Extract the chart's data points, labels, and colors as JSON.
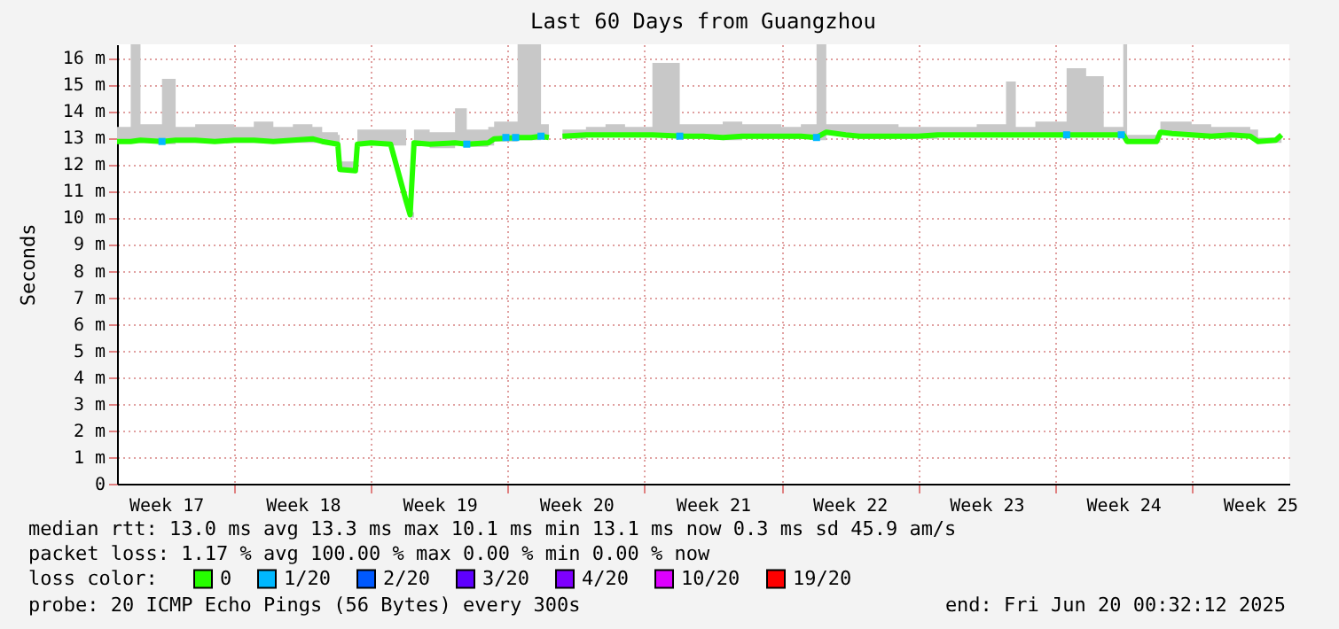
{
  "chart_data": {
    "type": "line",
    "title": "Last 60 Days from Guangzhou",
    "ylabel": "Seconds",
    "legend_title": "loss color:",
    "xlim": [
      "2025-04-21T00:00",
      "2025-06-20T00:00"
    ],
    "ylim": [
      0,
      16.5
    ],
    "xticks": [
      {
        "value": "2025-04-23T12:00",
        "label": "Week 17"
      },
      {
        "value": "2025-04-27T00:00",
        "label": null
      },
      {
        "value": "2025-04-30T12:00",
        "label": "Week 18"
      },
      {
        "value": "2025-05-04T00:00",
        "label": null
      },
      {
        "value": "2025-05-07T12:00",
        "label": "Week 19"
      },
      {
        "value": "2025-05-11T00:00",
        "label": null
      },
      {
        "value": "2025-05-14T12:00",
        "label": "Week 20"
      },
      {
        "value": "2025-05-18T00:00",
        "label": null
      },
      {
        "value": "2025-05-21T12:00",
        "label": "Week 21"
      },
      {
        "value": "2025-05-25T00:00",
        "label": null
      },
      {
        "value": "2025-05-28T12:00",
        "label": "Week 22"
      },
      {
        "value": "2025-06-01T00:00",
        "label": null
      },
      {
        "value": "2025-06-04T12:00",
        "label": "Week 23"
      },
      {
        "value": "2025-06-08T00:00",
        "label": null
      },
      {
        "value": "2025-06-11T12:00",
        "label": "Week 24"
      },
      {
        "value": "2025-06-15T00:00",
        "label": null
      },
      {
        "value": "2025-06-18T12:00",
        "label": "Week 25"
      }
    ],
    "yticks": [
      0,
      {
        "value": 1,
        "label": "1 m"
      },
      {
        "value": 2,
        "label": "2 m"
      },
      {
        "value": 3,
        "label": "3 m"
      },
      {
        "value": 4,
        "label": "4 m"
      },
      {
        "value": 5,
        "label": "5 m"
      },
      {
        "value": 6,
        "label": "6 m"
      },
      {
        "value": 7,
        "label": "7 m"
      },
      {
        "value": 8,
        "label": "8 m"
      },
      {
        "value": 9,
        "label": "9 m"
      },
      {
        "value": 10,
        "label": "10 m"
      },
      {
        "value": 11,
        "label": "11 m"
      },
      {
        "value": 12,
        "label": "12 m"
      },
      {
        "value": 13,
        "label": "13 m"
      },
      {
        "value": 14,
        "label": "14 m"
      },
      {
        "value": 15,
        "label": "15 m"
      },
      {
        "value": 16,
        "label": "16 m"
      }
    ],
    "grid": true,
    "legend": "bottom",
    "marker": "none",
    "line_style": "solid",
    "series": [
      {
        "name": "0",
        "color": "#26ff00",
        "x": [
          "2025-04-21T00:00",
          "2025-04-21T16:48",
          "2025-04-22T04:48",
          "2025-04-23T07:12",
          "2025-04-24T00:00",
          "2025-04-25T00:00",
          "2025-04-26T00:00",
          "2025-04-27T00:00",
          "2025-04-28T00:00",
          "2025-04-29T00:00",
          "2025-04-30T00:00",
          "2025-05-01T00:00",
          "2025-05-01T12:00",
          "2025-05-02T07:12",
          "2025-05-02T09:36",
          "2025-05-03T04:48",
          "2025-05-03T07:12",
          "2025-05-04T00:00",
          "2025-05-05T00:00",
          "2025-05-05T19:12",
          "2025-05-06T00:00",
          "2025-05-06T04:48",
          "2025-05-07T00:00",
          "2025-05-08T07:12",
          "2025-05-08T21:36",
          "2025-05-10T00:00",
          "2025-05-10T07:12",
          "2025-05-11T12:00",
          "2025-05-12T04:48",
          "2025-05-12T16:48",
          "2025-05-13T02:24",
          "2025-05-13T09:36",
          "2025-05-13T19:12",
          "2025-05-15T00:00",
          "2025-05-16T00:00",
          "2025-05-17T00:00",
          "2025-05-18T09:36",
          "2025-05-19T19:12",
          "2025-05-21T00:00",
          "2025-05-22T00:00",
          "2025-05-23T00:00",
          "2025-05-24T00:00",
          "2025-05-25T00:00",
          "2025-05-26T00:00",
          "2025-05-26T19:12",
          "2025-05-27T07:12",
          "2025-05-28T07:12",
          "2025-05-29T00:00",
          "2025-05-30T00:00",
          "2025-05-31T00:00",
          "2025-06-01T00:00",
          "2025-06-02T00:00",
          "2025-06-03T00:00",
          "2025-06-04T00:00",
          "2025-06-05T12:00",
          "2025-06-06T00:00",
          "2025-06-07T00:00",
          "2025-06-08T14:24",
          "2025-06-09T14:24",
          "2025-06-10T12:00",
          "2025-06-11T12:00",
          "2025-06-11T16:48",
          "2025-06-13T04:48",
          "2025-06-13T09:36",
          "2025-06-14T00:00",
          "2025-06-15T00:00",
          "2025-06-16T00:00",
          "2025-06-17T00:00",
          "2025-06-18T00:00",
          "2025-06-18T09:36",
          "2025-06-19T07:12",
          "2025-06-19T14:24"
        ],
        "values": [
          12.85,
          12.85,
          12.9,
          12.85,
          12.9,
          12.9,
          12.85,
          12.9,
          12.9,
          12.85,
          12.9,
          12.95,
          12.85,
          12.75,
          11.8,
          11.75,
          12.75,
          12.8,
          12.75,
          10.6,
          10.1,
          12.8,
          12.75,
          12.8,
          12.75,
          12.8,
          12.95,
          13.0,
          13.0,
          13.05,
          13.0,
          null,
          13.05,
          13.1,
          13.1,
          13.1,
          13.1,
          13.05,
          13.05,
          13.0,
          13.05,
          13.05,
          13.05,
          13.05,
          13.0,
          13.2,
          13.1,
          13.05,
          13.05,
          13.05,
          13.05,
          13.1,
          13.1,
          13.1,
          13.1,
          13.1,
          13.1,
          13.1,
          13.1,
          13.1,
          13.1,
          12.85,
          12.85,
          13.2,
          13.15,
          13.1,
          13.05,
          13.1,
          13.05,
          12.85,
          12.9,
          13.1
        ],
        "lower": [
          12.8,
          12.8,
          12.8,
          12.75,
          12.8,
          12.8,
          12.8,
          12.8,
          12.8,
          12.8,
          12.8,
          12.8,
          12.75,
          12.7,
          11.7,
          11.7,
          12.7,
          12.7,
          12.7,
          10.5,
          10.0,
          12.7,
          12.6,
          12.7,
          12.65,
          12.7,
          12.85,
          12.9,
          12.9,
          12.95,
          12.9,
          null,
          12.95,
          13.0,
          13.0,
          13.0,
          13.0,
          12.95,
          12.95,
          12.9,
          12.95,
          12.95,
          12.95,
          12.95,
          12.9,
          13.1,
          13.0,
          12.95,
          12.95,
          12.95,
          12.95,
          13.0,
          13.0,
          13.0,
          13.0,
          13.0,
          13.0,
          13.0,
          13.0,
          13.0,
          13.0,
          12.8,
          12.8,
          13.1,
          13.05,
          13.0,
          12.95,
          13.0,
          12.95,
          12.8,
          12.8,
          13.0
        ],
        "upper": [
          13.4,
          16.5,
          13.5,
          15.2,
          13.4,
          13.5,
          13.5,
          13.4,
          13.6,
          13.4,
          13.5,
          13.4,
          13.2,
          13.1,
          12.1,
          12.1,
          13.3,
          13.3,
          13.3,
          10.7,
          10.2,
          13.3,
          13.2,
          14.1,
          13.3,
          13.4,
          13.6,
          16.5,
          16.5,
          13.5,
          13.4,
          null,
          13.3,
          13.4,
          13.5,
          13.4,
          15.8,
          13.5,
          13.5,
          13.6,
          13.5,
          13.5,
          13.4,
          13.5,
          16.5,
          13.5,
          13.5,
          13.5,
          13.5,
          13.4,
          13.4,
          13.4,
          13.4,
          13.5,
          15.1,
          13.4,
          13.6,
          15.6,
          15.3,
          13.4,
          16.5,
          13.1,
          13.1,
          13.6,
          13.6,
          13.5,
          13.4,
          13.4,
          13.3,
          13.0,
          13.0,
          13.3
        ]
      },
      {
        "name": "1/20",
        "color": "#00b8ff",
        "type": "scatter",
        "marker": "square",
        "x": [
          "2025-04-23T07:12",
          "2025-05-08T21:36",
          "2025-05-10T21:36",
          "2025-05-11T09:36",
          "2025-05-12T16:48",
          "2025-05-19T19:12",
          "2025-05-26T19:12",
          "2025-06-08T14:24",
          "2025-06-11T09:36"
        ],
        "values": [
          12.85,
          12.75,
          13.0,
          13.0,
          13.05,
          13.05,
          13.0,
          13.1,
          13.1
        ]
      },
      {
        "name": "2/20",
        "color": "#0059ff",
        "type": "scatter",
        "marker": "square"
      },
      {
        "name": "3/20",
        "color": "#5e00ff",
        "type": "scatter",
        "marker": "square"
      },
      {
        "name": "4/20",
        "color": "#7e00ff",
        "type": "scatter",
        "marker": "square"
      },
      {
        "name": "10/20",
        "color": "#dd00ff",
        "type": "scatter",
        "marker": "square"
      },
      {
        "name": "19/20",
        "color": "#ff0000",
        "type": "scatter",
        "marker": "square"
      }
    ],
    "annotations": [
      "median rtt:  13.0 ms avg  13.3 ms max  10.1 ms min  13.1 ms now  0.3 ms sd  45.9   am/s",
      "packet loss: 1.17 % avg  100.00 % max  0.00 % min  0.00 % now",
      "probe:       20 ICMP Echo Pings (56 Bytes) every 300s",
      "end: Fri Jun 20 00:32:12 2025"
    ]
  }
}
